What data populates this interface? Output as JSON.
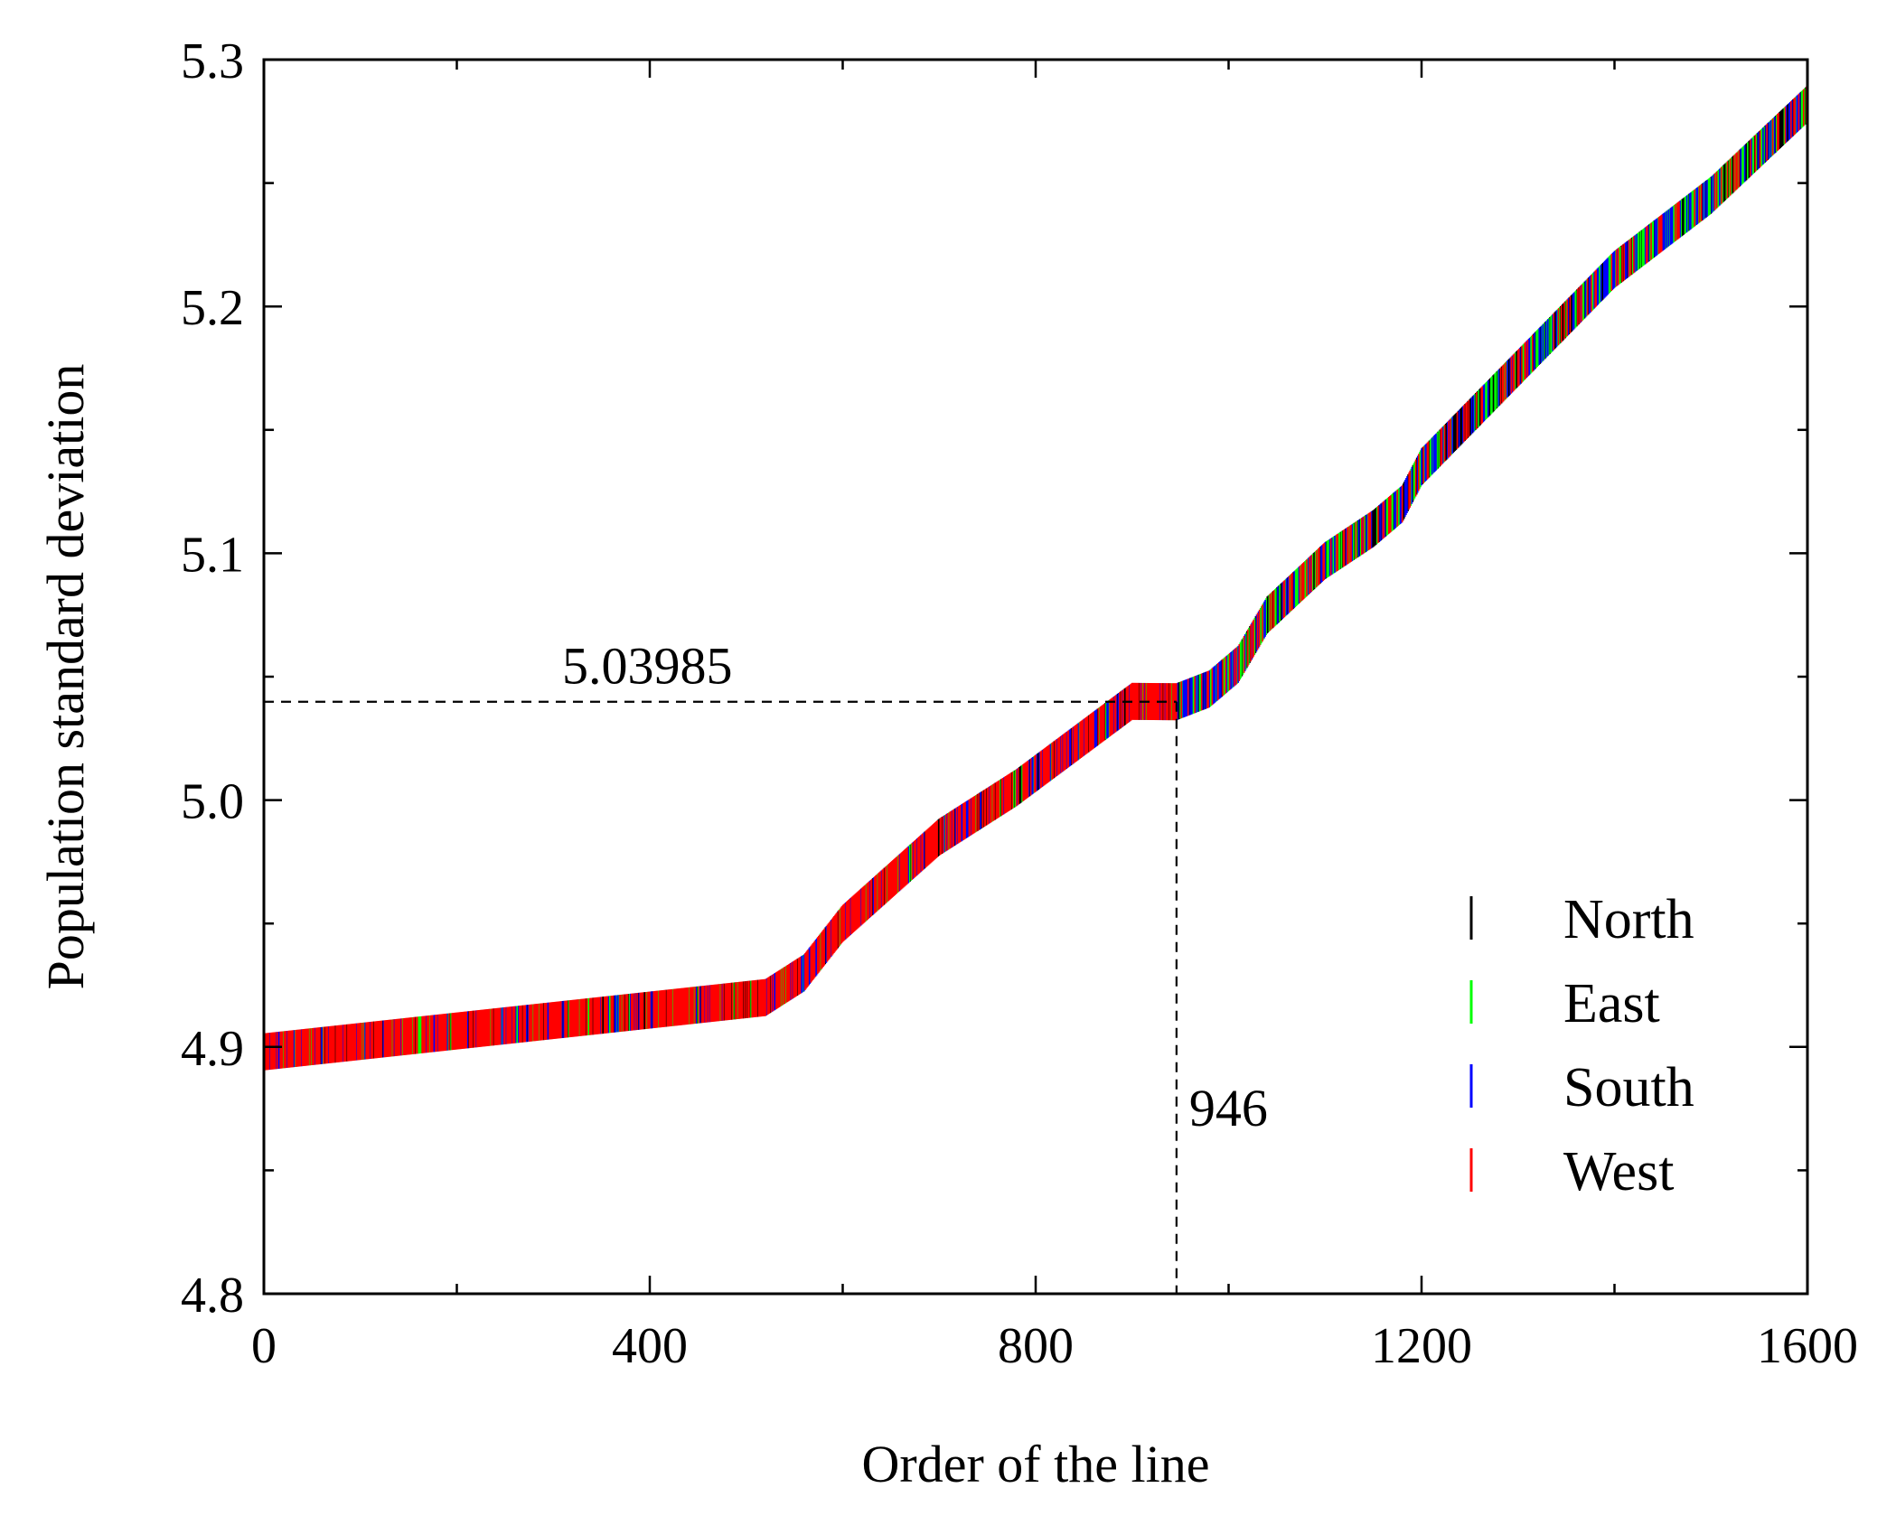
{
  "chart_data": {
    "type": "scatter",
    "title": "",
    "xlabel": "Order of the line",
    "ylabel": "Population standard deviation",
    "xlim": [
      0,
      1600
    ],
    "ylim": [
      4.8,
      5.3
    ],
    "x_ticks": [
      0,
      400,
      800,
      1200,
      1600
    ],
    "x_tick_labels": [
      "0",
      "400",
      "800",
      "1200",
      "1600"
    ],
    "x_minor_ticks": [
      200,
      600,
      1000,
      1400
    ],
    "y_ticks": [
      4.8,
      4.9,
      5.0,
      5.1,
      5.2,
      5.3
    ],
    "y_tick_labels": [
      "4.8",
      "4.9",
      "5.0",
      "5.1",
      "5.2",
      "5.3"
    ],
    "y_minor_ticks": [
      4.85,
      4.95,
      5.05,
      5.15,
      5.25
    ],
    "grid": false,
    "legend_position": "bottom-right",
    "series": [
      {
        "name": "North",
        "color": "#000000"
      },
      {
        "name": "East",
        "color": "#00ff00"
      },
      {
        "name": "South",
        "color": "#0000ff"
      },
      {
        "name": "West",
        "color": "#ff0000"
      }
    ],
    "curve": {
      "x": [
        0,
        520,
        560,
        600,
        700,
        780,
        900,
        946,
        980,
        1010,
        1040,
        1100,
        1150,
        1180,
        1200,
        1300,
        1400,
        1500,
        1600
      ],
      "y": [
        4.898,
        4.92,
        4.93,
        4.95,
        4.985,
        5.005,
        5.04,
        5.03985,
        5.045,
        5.055,
        5.075,
        5.097,
        5.11,
        5.12,
        5.135,
        5.175,
        5.215,
        5.245,
        5.282
      ]
    },
    "segments": [
      {
        "x_start": 0,
        "x_end": 520,
        "weights": {
          "North": 0.08,
          "East": 0.08,
          "South": 0.12,
          "West": 0.72
        }
      },
      {
        "x_start": 520,
        "x_end": 946,
        "weights": {
          "North": 0.08,
          "East": 0.08,
          "South": 0.16,
          "West": 0.68
        }
      },
      {
        "x_start": 946,
        "x_end": 1180,
        "weights": {
          "North": 0.18,
          "East": 0.28,
          "South": 0.22,
          "West": 0.32
        }
      },
      {
        "x_start": 1180,
        "x_end": 1600,
        "weights": {
          "North": 0.22,
          "East": 0.3,
          "South": 0.26,
          "West": 0.22
        }
      }
    ],
    "annotations": [
      {
        "id": "y-marker",
        "text": "5.03985",
        "x": 946,
        "y": 5.03985
      },
      {
        "id": "x-marker",
        "text": "946",
        "x": 946,
        "y": 5.03985
      }
    ]
  }
}
